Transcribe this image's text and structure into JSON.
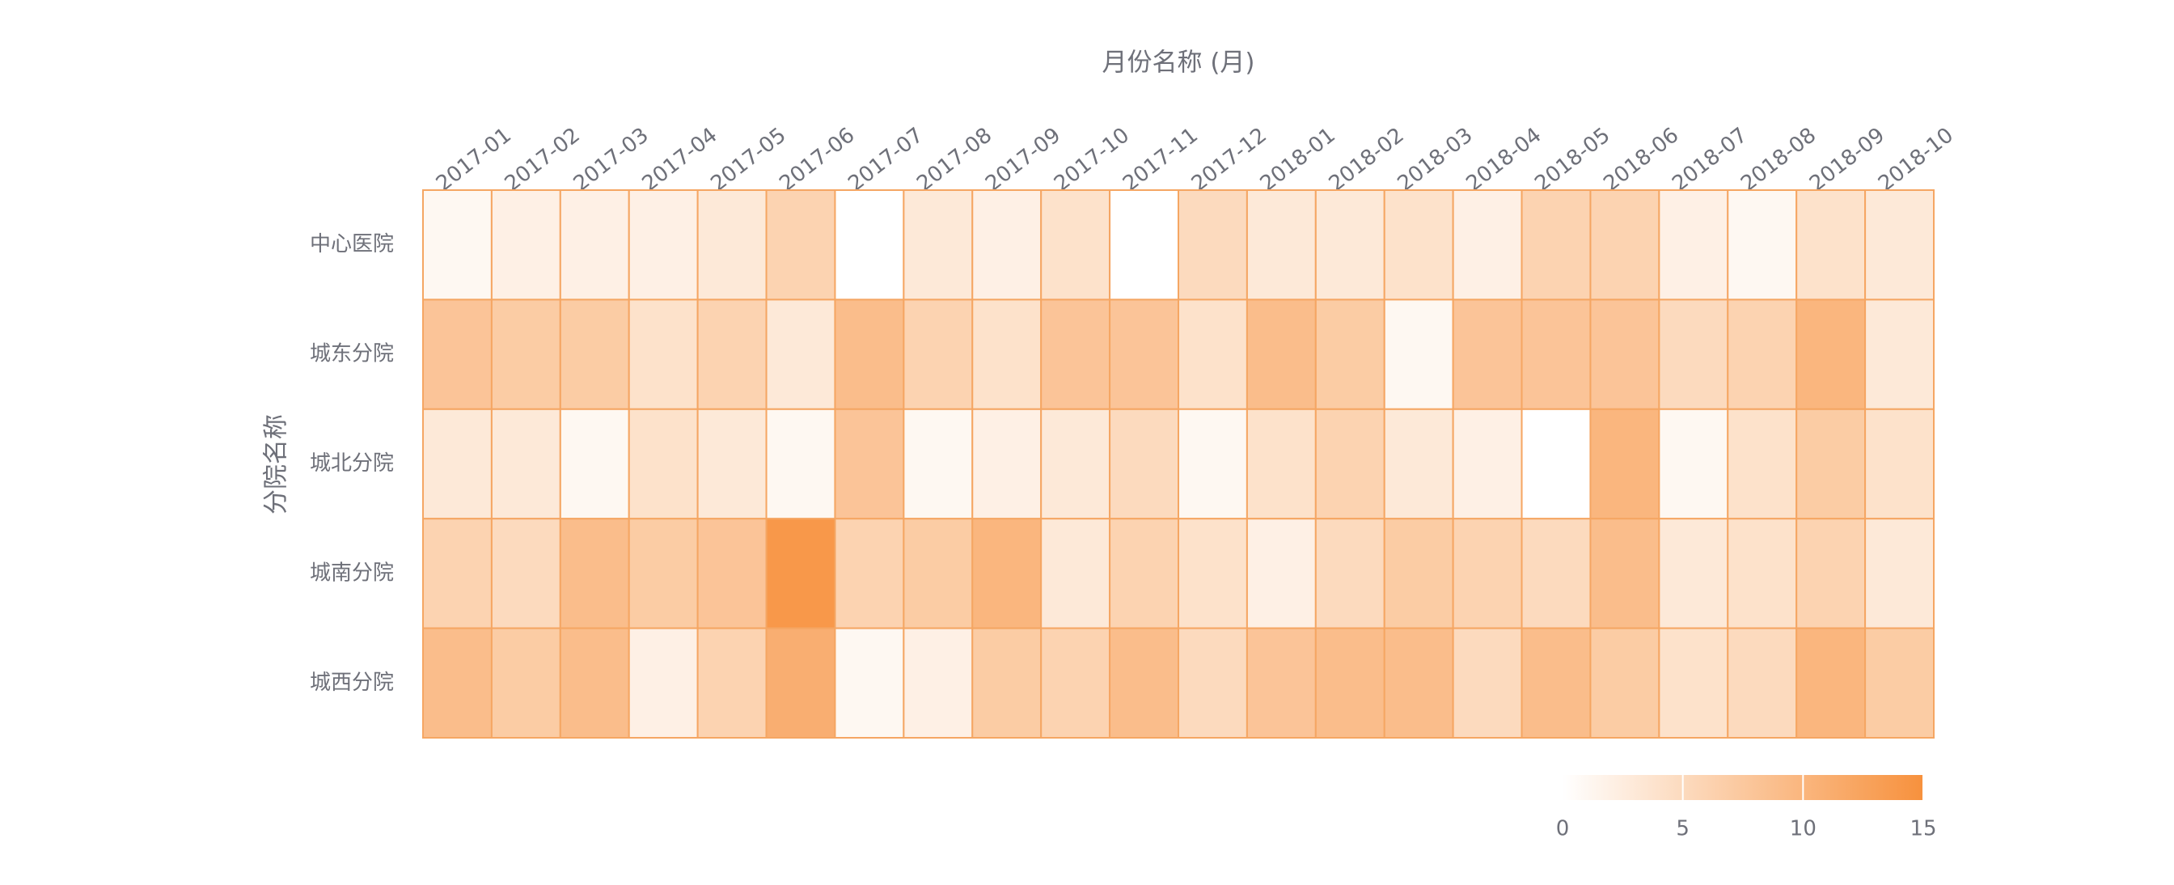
{
  "chart_data": {
    "type": "heatmap",
    "x_label": "月份名称 (月)",
    "y_label": "分院名称",
    "categories": [
      "2017-01",
      "2017-02",
      "2017-03",
      "2017-04",
      "2017-05",
      "2017-06",
      "2017-07",
      "2017-08",
      "2017-09",
      "2017-10",
      "2017-11",
      "2017-12",
      "2018-01",
      "2018-02",
      "2018-03",
      "2018-04",
      "2018-05",
      "2018-06",
      "2018-07",
      "2018-08",
      "2018-09",
      "2018-10"
    ],
    "rows": [
      "中心医院",
      "城东分院",
      "城北分院",
      "城南分院",
      "城西分院"
    ],
    "values": [
      [
        1,
        2,
        2,
        2,
        3,
        6,
        0,
        3,
        2,
        4,
        0,
        5,
        3,
        3,
        4,
        2,
        6,
        6,
        2,
        1,
        4,
        3
      ],
      [
        8,
        7,
        7,
        4,
        6,
        3,
        9,
        6,
        4,
        8,
        8,
        4,
        9,
        7,
        1,
        8,
        8,
        8,
        5,
        6,
        10,
        3
      ],
      [
        3,
        3,
        1,
        4,
        3,
        1,
        8,
        1,
        2,
        3,
        5,
        1,
        4,
        6,
        3,
        2,
        0,
        10,
        1,
        4,
        7,
        4
      ],
      [
        6,
        5,
        9,
        7,
        8,
        14,
        6,
        7,
        10,
        3,
        6,
        4,
        2,
        5,
        7,
        6,
        5,
        9,
        3,
        4,
        6,
        3
      ],
      [
        9,
        7,
        9,
        2,
        6,
        11,
        1,
        2,
        7,
        6,
        9,
        5,
        8,
        9,
        9,
        5,
        9,
        7,
        4,
        5,
        10,
        7
      ]
    ],
    "colors": [
      "#ffffff",
      "#f7913d"
    ],
    "clim": [
      0,
      15
    ],
    "cticks": [
      0,
      5,
      10,
      15
    ]
  }
}
